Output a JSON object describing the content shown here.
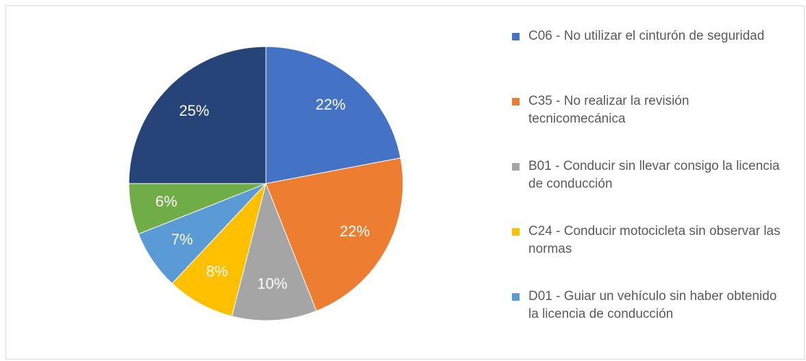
{
  "chart_data": {
    "type": "pie",
    "categories": [
      "C06 - No utilizar el cinturón de seguridad",
      "C35 - No realizar la revisión tecnicomecánica",
      "B01 - Conducir sin llevar consigo la licencia de conducción",
      "C24 - Conducir motocicleta sin observar las normas",
      "D01 - Guiar un vehículo sin haber obtenido la licencia de conducción",
      null,
      null
    ],
    "values": [
      22,
      22,
      10,
      8,
      7,
      6,
      25
    ],
    "value_labels": [
      "22%",
      "22%",
      "10%",
      "8%",
      "7%",
      "6%",
      "25%"
    ],
    "colors": [
      "#4472c4",
      "#ed7d31",
      "#a5a5a5",
      "#ffc000",
      "#5b9bd5",
      "#70ad47",
      "#264478"
    ],
    "legend": "right"
  }
}
